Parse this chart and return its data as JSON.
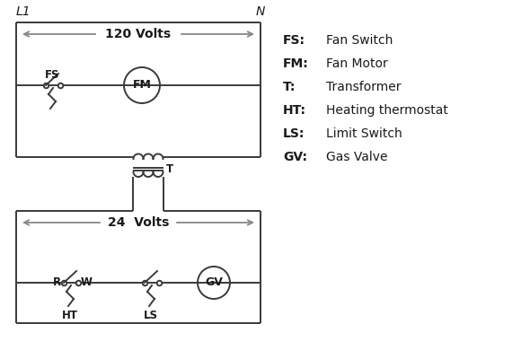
{
  "bg_color": "#ffffff",
  "line_color": "#3a3a3a",
  "arrow_color": "#888888",
  "text_color": "#1a1a1a",
  "legend": [
    [
      "FS:",
      "Fan Switch"
    ],
    [
      "FM:",
      "Fan Motor"
    ],
    [
      "T:",
      "Transformer"
    ],
    [
      "HT:",
      "Heating thermostat"
    ],
    [
      "LS:",
      "Limit Switch"
    ],
    [
      "GV:",
      "Gas Valve"
    ]
  ],
  "L1_label": "L1",
  "N_label": "N",
  "volts120": "120 Volts",
  "volts24": "24  Volts",
  "T_label": "T",
  "FS_label": "FS",
  "FM_label": "FM",
  "GV_label": "GV",
  "R_label": "R",
  "W_label": "W",
  "HT_label": "HT",
  "LS_label": "LS"
}
